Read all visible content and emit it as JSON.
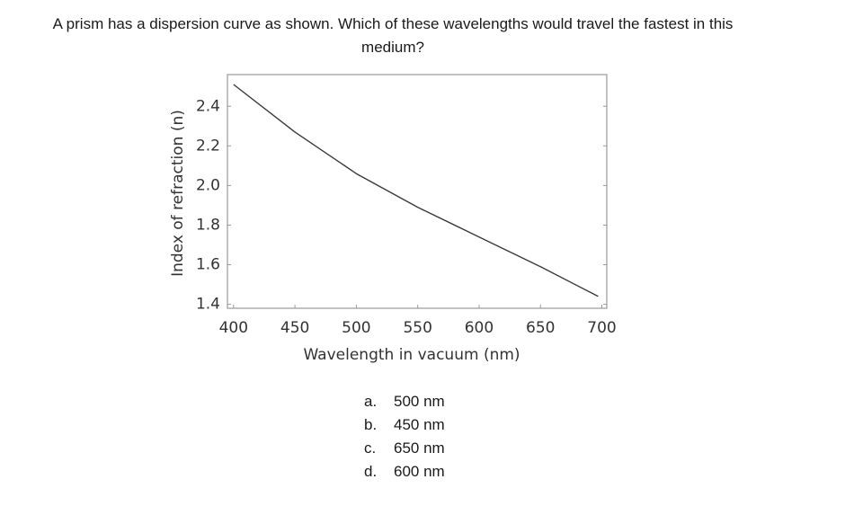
{
  "question": "A prism has a dispersion curve as shown. Which of these wavelengths would travel the fastest in this medium?",
  "chart_data": {
    "type": "line",
    "x_label": "Wavelength in vacuum (nm)",
    "y_label": "Index of refraction (n)",
    "x": [
      400,
      450,
      500,
      550,
      600,
      650,
      697
    ],
    "series": [
      {
        "color": "#3a3a3a",
        "values": [
          2.51,
          2.27,
          2.06,
          1.89,
          1.74,
          1.59,
          1.44
        ]
      }
    ],
    "xlim": [
      395,
      704
    ],
    "ylim": [
      1.38,
      2.56
    ],
    "xticks": [
      400,
      450,
      500,
      550,
      600,
      650,
      700
    ],
    "yticks": [
      1.4,
      1.6,
      1.8,
      {
        "value": 2,
        "label": "2.0"
      },
      2.2,
      2.4
    ]
  },
  "options": [
    {
      "letter": "a.",
      "text": "500 nm"
    },
    {
      "letter": "b.",
      "text": "450 nm"
    },
    {
      "letter": "c.",
      "text": "650 nm"
    },
    {
      "letter": "d.",
      "text": "600 nm"
    }
  ]
}
